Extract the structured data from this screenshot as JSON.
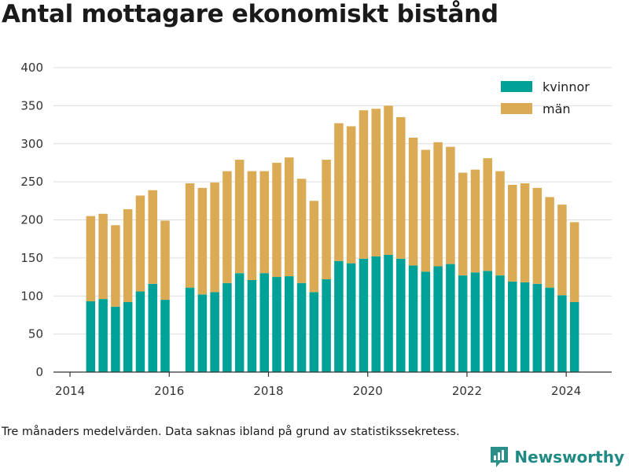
{
  "title": "Antal mottagare ekonomiskt bistånd",
  "footnote": "Tre månaders medelvärden. Data saknas ibland på grund av statistikssekretess.",
  "brand": {
    "name": "Newsworthy",
    "logo_icon": "newsworthy-logo-icon"
  },
  "colors": {
    "kvinnor": "#00a197",
    "man": "#daaa54",
    "grid": "#dedede",
    "axis": "#333333"
  },
  "chart_data": {
    "type": "bar",
    "stacked": true,
    "x_label_ticks": [
      "2014",
      "2016",
      "2018",
      "2020",
      "2022",
      "2024"
    ],
    "x": [
      "2014-06",
      "2014-09",
      "2014-12",
      "2015-03",
      "2015-06",
      "2015-09",
      "2015-12",
      "2016-06",
      "2016-09",
      "2016-12",
      "2017-03",
      "2017-06",
      "2017-09",
      "2017-12",
      "2018-03",
      "2018-06",
      "2018-09",
      "2018-12",
      "2019-03",
      "2019-06",
      "2019-09",
      "2019-12",
      "2020-03",
      "2020-06",
      "2020-09",
      "2020-12",
      "2021-03",
      "2021-06",
      "2021-09",
      "2021-12",
      "2022-03",
      "2022-06",
      "2022-09",
      "2022-12",
      "2023-03",
      "2023-06",
      "2023-09",
      "2023-12",
      "2024-03"
    ],
    "series": [
      {
        "name": "kvinnor",
        "values": [
          93,
          96,
          86,
          92,
          106,
          116,
          95,
          111,
          102,
          105,
          117,
          130,
          121,
          130,
          125,
          126,
          117,
          105,
          122,
          146,
          143,
          149,
          152,
          154,
          149,
          140,
          132,
          139,
          142,
          127,
          131,
          133,
          127,
          119,
          118,
          116,
          111,
          101,
          92
        ]
      },
      {
        "name": "män",
        "values": [
          112,
          112,
          107,
          122,
          126,
          123,
          104,
          137,
          140,
          144,
          147,
          149,
          143,
          134,
          150,
          156,
          137,
          120,
          157,
          181,
          180,
          195,
          194,
          196,
          186,
          168,
          160,
          163,
          154,
          135,
          135,
          148,
          137,
          127,
          130,
          126,
          119,
          119,
          105
        ]
      }
    ],
    "ylim": [
      0,
      400
    ],
    "y_ticks": [
      0,
      50,
      100,
      150,
      200,
      250,
      300,
      350,
      400
    ],
    "xlim": [
      "2013-09",
      "2024-12"
    ],
    "grid": "horizontal",
    "legend_position": "top-right",
    "xlabel": "",
    "ylabel": ""
  }
}
